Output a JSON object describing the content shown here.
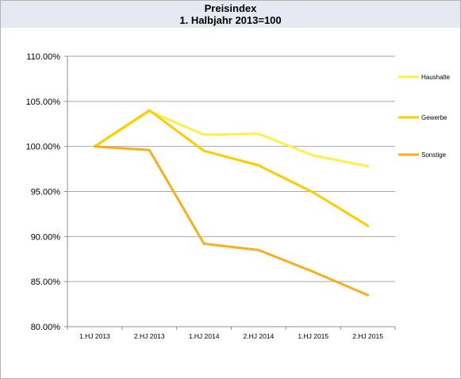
{
  "chart_data": {
    "type": "line",
    "title": "Preisindex",
    "subtitle": "1. Halbjahr 2013=100",
    "xlabel": "",
    "ylabel": "",
    "categories": [
      "1.HJ 2013",
      "2.HJ 2013",
      "1.HJ 2014",
      "2.HJ 2014",
      "1.HJ 2015",
      "2.HJ 2015"
    ],
    "ylim": [
      80,
      110
    ],
    "yticks": [
      80,
      85,
      90,
      95,
      100,
      105,
      110
    ],
    "ytick_labels": [
      "80.00%",
      "85.00%",
      "90.00%",
      "95.00%",
      "100.00%",
      "105.00%",
      "110.00%"
    ],
    "grid": true,
    "legend_position": "right",
    "series": [
      {
        "name": "Haushalte",
        "color": "#ffef4a",
        "values": [
          100.0,
          103.9,
          101.3,
          101.4,
          99.0,
          97.8
        ]
      },
      {
        "name": "Gewerbe",
        "color": "#ffcc00",
        "values": [
          100.0,
          104.0,
          99.5,
          97.9,
          94.9,
          91.2
        ]
      },
      {
        "name": "Sonstige",
        "color": "#f5b01c",
        "values": [
          100.0,
          99.6,
          89.2,
          88.5,
          86.1,
          83.5
        ]
      }
    ]
  }
}
